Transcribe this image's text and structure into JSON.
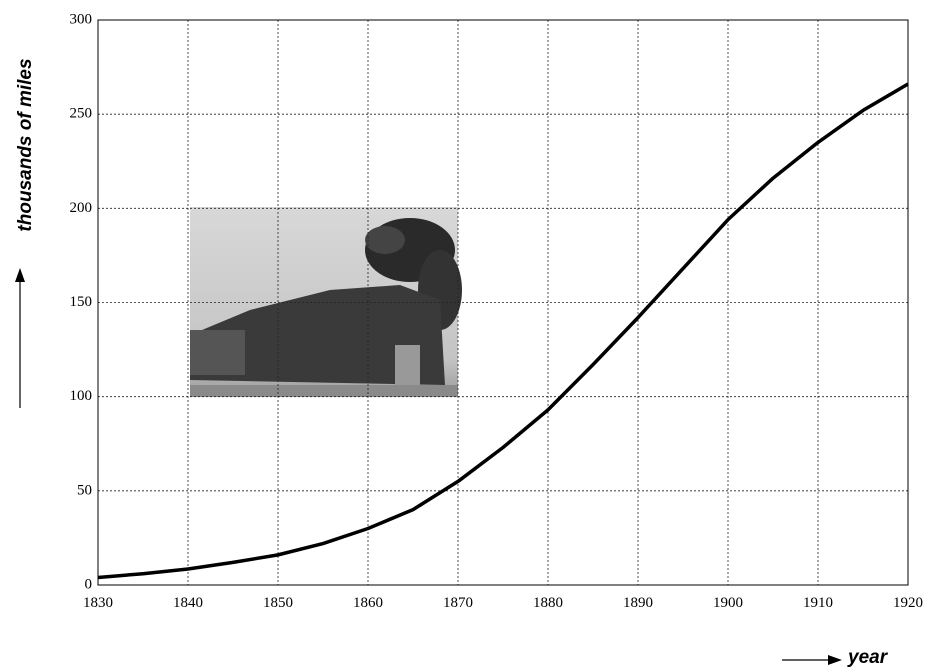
{
  "chart_data": {
    "type": "line",
    "x_label": "year",
    "y_label": "thousands of miles",
    "x": [
      1830,
      1835,
      1840,
      1845,
      1850,
      1855,
      1860,
      1865,
      1870,
      1875,
      1880,
      1885,
      1890,
      1895,
      1900,
      1905,
      1910,
      1915,
      1920
    ],
    "series": [
      {
        "color": "#000000",
        "values": [
          4,
          6,
          8.5,
          12,
          16,
          22,
          30,
          40,
          55,
          73,
          93,
          117,
          142,
          168,
          194,
          216,
          235,
          252,
          266
        ]
      }
    ],
    "xlim": [
      1830,
      1920
    ],
    "xticks": [
      1830,
      1840,
      1850,
      1860,
      1870,
      1880,
      1890,
      1900,
      1910,
      1920
    ],
    "ylim": [
      0,
      300
    ],
    "yticks": [
      0,
      50,
      100,
      150,
      200,
      250,
      300
    ],
    "grid": true
  }
}
